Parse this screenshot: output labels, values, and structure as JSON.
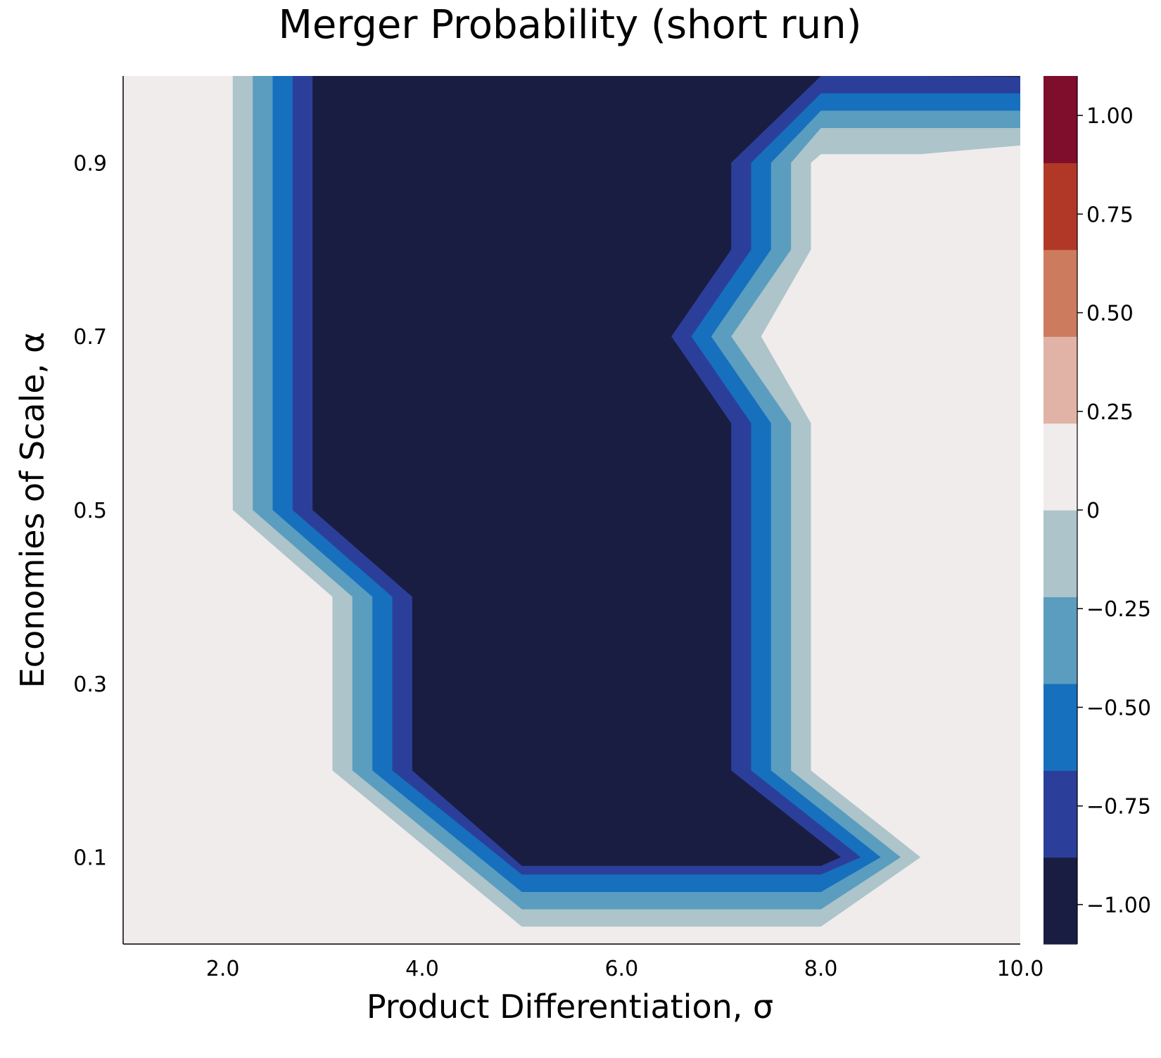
{
  "chart_data": {
    "type": "contourf",
    "title": "Merger Probability (short run)",
    "xlabel": "Product Differentiation, σ",
    "ylabel": "Economies of Scale, α",
    "xlim": [
      1.0,
      10.0
    ],
    "ylim": [
      0.0,
      1.0
    ],
    "x_ticks": [
      2.0,
      4.0,
      6.0,
      8.0,
      10.0
    ],
    "x_tick_labels": [
      "2.0",
      "4.0",
      "6.0",
      "8.0",
      "10.0"
    ],
    "y_ticks": [
      0.1,
      0.3,
      0.5,
      0.7,
      0.9
    ],
    "y_tick_labels": [
      "0.1",
      "0.3",
      "0.5",
      "0.7",
      "0.9"
    ],
    "grid": false,
    "colorbar": {
      "range": [
        -1.1,
        1.1
      ],
      "levels": [
        -1.1,
        -0.88,
        -0.66,
        -0.44,
        -0.22,
        0.0,
        0.22,
        0.44,
        0.66,
        0.88,
        1.1
      ],
      "band_colors": [
        "#1a1d42",
        "#2b3f9a",
        "#1670bd",
        "#5a9dbf",
        "#acc4ca",
        "#f0eceb",
        "#e0b3a6",
        "#cc7b5e",
        "#b13826",
        "#7e0e2b",
        "#420d16"
      ],
      "ticks": [
        1.0,
        0.75,
        0.5,
        0.25,
        0,
        -0.25,
        -0.5,
        -0.75,
        -1.0
      ],
      "tick_labels": [
        "1.00",
        "0.75",
        "0.50",
        "0.25",
        "0",
        "−0.25",
        "−0.50",
        "−0.75",
        "−1.00"
      ]
    },
    "background_value": 0,
    "background_color": "#f0eceb",
    "regions": [
      {
        "value": -0.25,
        "color": "#acc4ca",
        "boundary": [
          [
            2.1,
            1.0
          ],
          [
            2.1,
            0.5
          ],
          [
            3.1,
            0.4
          ],
          [
            3.1,
            0.2
          ],
          [
            5.0,
            0.02
          ],
          [
            8.0,
            0.02
          ],
          [
            9.0,
            0.1
          ],
          [
            7.9,
            0.2
          ],
          [
            7.9,
            0.6
          ],
          [
            7.4,
            0.7
          ],
          [
            7.9,
            0.8
          ],
          [
            7.9,
            0.9
          ],
          [
            8.0,
            0.91
          ],
          [
            9.0,
            0.91
          ],
          [
            10.0,
            0.92
          ],
          [
            10.0,
            1.0
          ]
        ]
      },
      {
        "value": -0.5,
        "color": "#5a9dbf",
        "boundary": [
          [
            2.3,
            1.0
          ],
          [
            2.3,
            0.5
          ],
          [
            3.3,
            0.4
          ],
          [
            3.3,
            0.2
          ],
          [
            5.0,
            0.04
          ],
          [
            8.0,
            0.04
          ],
          [
            8.8,
            0.1
          ],
          [
            7.7,
            0.2
          ],
          [
            7.7,
            0.6
          ],
          [
            7.1,
            0.7
          ],
          [
            7.7,
            0.8
          ],
          [
            7.7,
            0.9
          ],
          [
            8.0,
            0.94
          ],
          [
            9.0,
            0.94
          ],
          [
            10.0,
            0.94
          ],
          [
            10.0,
            1.0
          ]
        ]
      },
      {
        "value": -0.75,
        "color": "#1670bd",
        "boundary": [
          [
            2.5,
            1.0
          ],
          [
            2.5,
            0.5
          ],
          [
            3.5,
            0.4
          ],
          [
            3.5,
            0.2
          ],
          [
            5.0,
            0.06
          ],
          [
            8.0,
            0.06
          ],
          [
            8.6,
            0.1
          ],
          [
            7.5,
            0.2
          ],
          [
            7.5,
            0.6
          ],
          [
            6.9,
            0.7
          ],
          [
            7.5,
            0.8
          ],
          [
            7.5,
            0.9
          ],
          [
            8.0,
            0.96
          ],
          [
            9.0,
            0.96
          ],
          [
            10.0,
            0.96
          ],
          [
            10.0,
            1.0
          ]
        ]
      },
      {
        "value": -1.0,
        "color": "#2b3f9a",
        "boundary": [
          [
            2.7,
            1.0
          ],
          [
            2.7,
            0.5
          ],
          [
            3.7,
            0.4
          ],
          [
            3.7,
            0.2
          ],
          [
            5.0,
            0.08
          ],
          [
            8.0,
            0.08
          ],
          [
            8.4,
            0.1
          ],
          [
            7.3,
            0.2
          ],
          [
            7.3,
            0.6
          ],
          [
            6.7,
            0.7
          ],
          [
            7.3,
            0.8
          ],
          [
            7.3,
            0.9
          ],
          [
            8.0,
            0.98
          ],
          [
            9.0,
            0.98
          ],
          [
            10.0,
            0.98
          ],
          [
            10.0,
            1.0
          ]
        ]
      },
      {
        "value": -1.1,
        "color": "#1a1d42",
        "boundary": [
          [
            2.9,
            1.0
          ],
          [
            2.9,
            0.5
          ],
          [
            3.9,
            0.4
          ],
          [
            3.9,
            0.2
          ],
          [
            5.0,
            0.09
          ],
          [
            8.0,
            0.09
          ],
          [
            8.2,
            0.1
          ],
          [
            7.1,
            0.2
          ],
          [
            7.1,
            0.6
          ],
          [
            6.5,
            0.7
          ],
          [
            7.1,
            0.8
          ],
          [
            7.1,
            0.9
          ],
          [
            8.0,
            1.0
          ],
          [
            9.0,
            1.0
          ],
          [
            10.0,
            0.999
          ],
          [
            10.0,
            1.0
          ]
        ]
      }
    ]
  }
}
